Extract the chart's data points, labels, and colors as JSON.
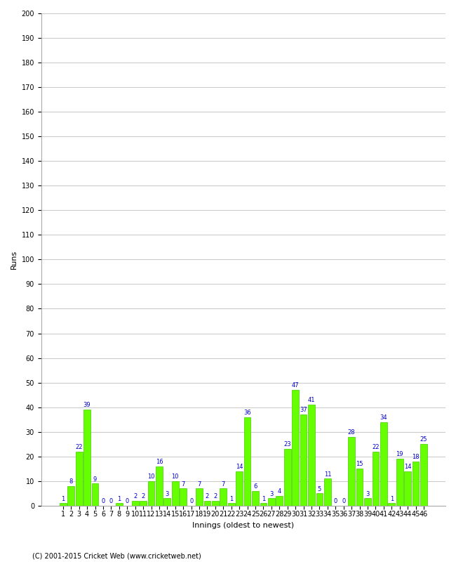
{
  "title": "",
  "xlabel": "Innings (oldest to newest)",
  "ylabel": "Runs",
  "ylim": [
    0,
    200
  ],
  "yticks": [
    0,
    10,
    20,
    30,
    40,
    50,
    60,
    70,
    80,
    90,
    100,
    110,
    120,
    130,
    140,
    150,
    160,
    170,
    180,
    190,
    200
  ],
  "innings": [
    1,
    2,
    3,
    4,
    5,
    6,
    7,
    8,
    9,
    10,
    11,
    12,
    13,
    14,
    15,
    16,
    17,
    18,
    19,
    20,
    21,
    22,
    23,
    24,
    25,
    26,
    27,
    28,
    29,
    30,
    31,
    32,
    33,
    34,
    35,
    36,
    37,
    38,
    39,
    40,
    41,
    42,
    43,
    44,
    45,
    46
  ],
  "values": [
    1,
    8,
    22,
    39,
    9,
    0,
    0,
    1,
    0,
    2,
    2,
    10,
    16,
    3,
    10,
    7,
    0,
    7,
    2,
    2,
    7,
    1,
    14,
    36,
    6,
    1,
    3,
    4,
    23,
    47,
    37,
    41,
    5,
    11,
    0,
    0,
    28,
    15,
    3,
    22,
    34,
    1,
    19,
    14,
    18,
    25
  ],
  "bar_color": "#66ff00",
  "bar_edge_color": "#44cc00",
  "label_color": "#0000cc",
  "label_fontsize": 6.0,
  "background_color": "#ffffff",
  "grid_color": "#cccccc",
  "tick_label_fontsize": 7,
  "axis_label_fontsize": 8,
  "footer": "(C) 2001-2015 Cricket Web (www.cricketweb.net)"
}
